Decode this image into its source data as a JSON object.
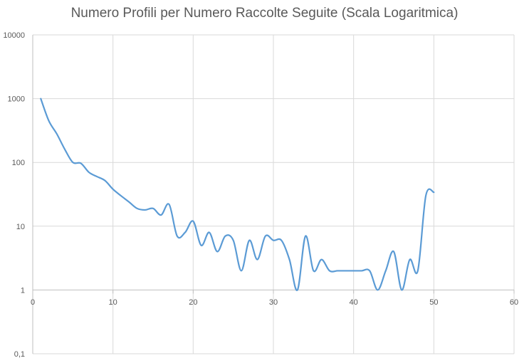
{
  "chart_data": {
    "type": "line",
    "title": "Numero Profili per Numero Raccolte Seguite (Scala Logaritmica)",
    "xlabel": "",
    "ylabel": "",
    "xlim": [
      0,
      60
    ],
    "ylim": [
      0.1,
      10000
    ],
    "y_scale": "log",
    "grid": true,
    "smooth": true,
    "x_ticks": [
      "0",
      "10",
      "20",
      "30",
      "40",
      "50",
      "60"
    ],
    "y_ticks": [
      "0,1",
      "1",
      "10",
      "100",
      "1000",
      "10000"
    ],
    "series": [
      {
        "color": "#5b9bd5",
        "x": [
          1,
          2,
          3,
          4,
          5,
          6,
          7,
          8,
          9,
          10,
          11,
          12,
          13,
          14,
          15,
          16,
          17,
          18,
          19,
          20,
          21,
          22,
          23,
          24,
          25,
          26,
          27,
          28,
          29,
          30,
          31,
          32,
          33,
          34,
          35,
          36,
          37,
          38,
          39,
          40,
          41,
          42,
          43,
          44,
          45,
          46,
          47,
          48,
          49,
          50
        ],
        "values": [
          1000,
          450,
          280,
          160,
          100,
          97,
          70,
          60,
          52,
          38,
          30,
          24,
          19,
          18,
          19,
          15,
          22,
          7,
          8,
          12,
          5,
          8,
          4,
          7,
          6,
          2,
          6,
          3,
          7,
          6,
          6,
          3,
          1,
          7,
          2,
          3,
          2,
          2,
          2,
          2,
          2,
          2,
          1,
          2,
          4,
          1,
          3,
          2,
          30,
          34
        ]
      }
    ]
  }
}
